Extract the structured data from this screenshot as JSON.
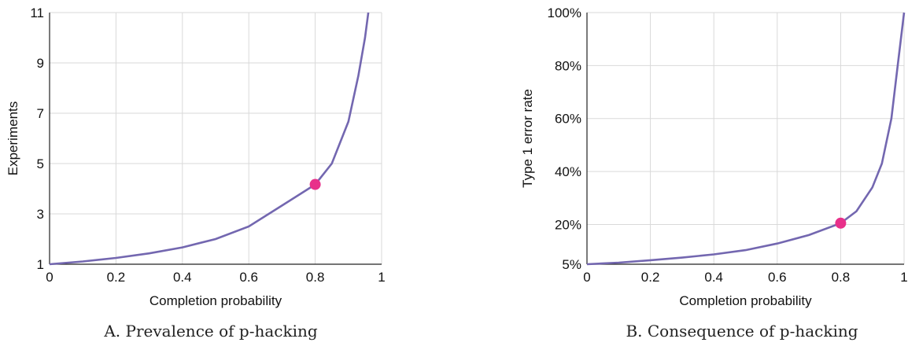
{
  "chart_data": [
    {
      "type": "line",
      "caption": "A. Prevalence of p-hacking",
      "xlabel": "Completion probability",
      "ylabel": "Experiments",
      "xlim": [
        0,
        1
      ],
      "ylim": [
        1,
        11
      ],
      "xticks": [
        "0",
        "0.2",
        "0.4",
        "0.6",
        "0.8",
        "1"
      ],
      "yticks": [
        "1",
        "3",
        "5",
        "7",
        "9",
        "11"
      ],
      "grid": true,
      "series": [
        {
          "x": [
            0,
            0.1,
            0.2,
            0.3,
            0.4,
            0.5,
            0.6,
            0.7,
            0.8,
            0.85,
            0.9,
            0.93,
            0.95,
            0.96
          ],
          "y": [
            1.0,
            1.11,
            1.25,
            1.43,
            1.67,
            2.0,
            2.5,
            3.33,
            4.17,
            5.0,
            6.67,
            8.5,
            10.0,
            11.0
          ]
        }
      ],
      "highlight": {
        "x": 0.8,
        "y": 4.17
      },
      "colors": {
        "line": "#7367b0",
        "marker": "#e8308a"
      }
    },
    {
      "type": "line",
      "caption": "B. Consequence of p-hacking",
      "xlabel": "Completion probability",
      "ylabel": "Type 1 error rate",
      "xlim": [
        0,
        1
      ],
      "ylim": [
        5,
        100
      ],
      "xticks": [
        "0",
        "0.2",
        "0.4",
        "0.6",
        "0.8",
        "1"
      ],
      "yticks": [
        "5%",
        "20%",
        "40%",
        "60%",
        "80%",
        "100%"
      ],
      "ytick_values": [
        5,
        20,
        40,
        60,
        80,
        100
      ],
      "grid": true,
      "series": [
        {
          "x": [
            0,
            0.1,
            0.2,
            0.3,
            0.4,
            0.5,
            0.6,
            0.7,
            0.8,
            0.85,
            0.9,
            0.93,
            0.96,
            0.98,
            1.0
          ],
          "y": [
            5.0,
            5.6,
            6.5,
            7.5,
            8.7,
            10.3,
            12.8,
            16.0,
            20.5,
            25.0,
            34.0,
            43.0,
            60.0,
            80.0,
            100.0
          ]
        }
      ],
      "highlight": {
        "x": 0.8,
        "y": 20.5
      },
      "colors": {
        "line": "#7367b0",
        "marker": "#e8308a"
      }
    }
  ]
}
